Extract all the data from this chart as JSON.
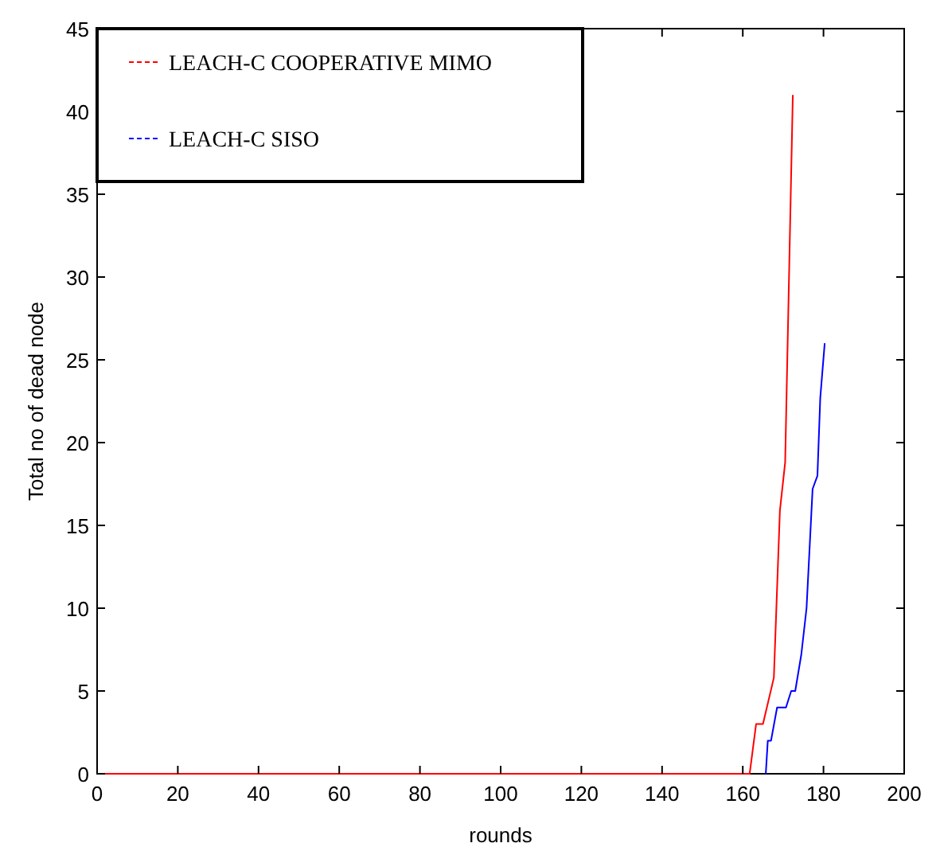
{
  "chart_data": {
    "type": "line",
    "xlabel": "rounds",
    "ylabel": "Total no of dead node",
    "xlim": [
      0,
      200
    ],
    "xticks": [
      0,
      20,
      40,
      60,
      80,
      100,
      120,
      140,
      160,
      180,
      200
    ],
    "ylim": [
      0,
      45
    ],
    "yticks": [
      0,
      5,
      10,
      15,
      20,
      25,
      30,
      35,
      40,
      45
    ],
    "legend": "top left",
    "grid": false,
    "series": [
      {
        "name": "LEACH-C COOPERATIVE MIMO",
        "color": "#ff0000",
        "x": [
          0,
          161.7,
          163.3,
          165,
          167.7,
          169.2,
          170.5,
          172.4
        ],
        "values": [
          0,
          0,
          3,
          3,
          5.8,
          15.9,
          18.8,
          41
        ]
      },
      {
        "name": "LEACH-C SISO",
        "color": "#0000ff",
        "x": [
          165.7,
          166.2,
          167,
          168.5,
          170.7,
          172,
          173,
          174.5,
          175.8,
          177.3,
          178.5,
          179.2,
          180.3
        ],
        "values": [
          0,
          2,
          2,
          4,
          4,
          5,
          5,
          7.2,
          10,
          17.2,
          18,
          22.7,
          26
        ]
      }
    ]
  }
}
